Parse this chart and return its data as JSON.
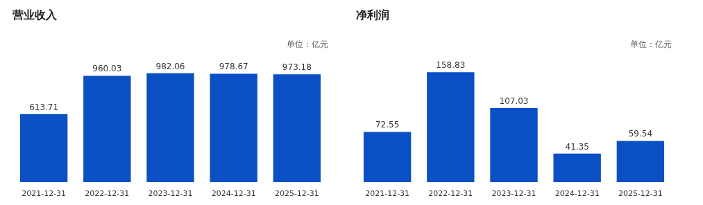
{
  "chart_data": [
    {
      "type": "bar",
      "title": "营业收入",
      "annotations": [
        "单位：亿元"
      ],
      "categories": [
        "2021-12-31",
        "2022-12-31",
        "2023-12-31",
        "2024-12-31",
        "2025-12-31"
      ],
      "series": [
        {
          "color": "#0a50c4",
          "values": [
            613.71,
            960.03,
            982.06,
            978.67,
            973.18
          ]
        }
      ],
      "data_labels": true
    },
    {
      "type": "bar",
      "title": "净利润",
      "annotations": [
        "单位：亿元"
      ],
      "categories": [
        "2021-12-31",
        "2022-12-31",
        "2023-12-31",
        "2024-12-31",
        "2025-12-31"
      ],
      "series": [
        {
          "color": "#0a50c4",
          "values": [
            72.55,
            158.83,
            107.03,
            41.35,
            59.54
          ]
        }
      ],
      "data_labels": true
    }
  ]
}
